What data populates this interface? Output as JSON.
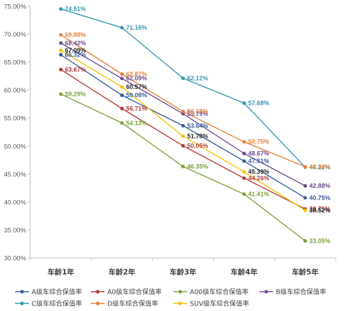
{
  "chart_data": {
    "type": "line",
    "categories": [
      "车龄1年",
      "车龄2年",
      "车龄3年",
      "车龄4年",
      "车龄5年"
    ],
    "ylim": [
      30,
      75
    ],
    "yticks": [
      "30.00%",
      "35.00%",
      "40.00%",
      "45.00%",
      "50.00%",
      "55.00%",
      "60.00%",
      "65.00%",
      "70.00%",
      "75.00%"
    ],
    "grid": false,
    "legend_position": "bottom",
    "series": [
      {
        "name": "A级车综合保值率",
        "color": "#3a5d9c",
        "values": [
          66.32,
          59.08,
          53.64,
          47.31,
          40.75
        ],
        "labels": [
          "66.32%",
          "59.08%",
          "53.64%",
          "47.31%",
          "40.75%"
        ]
      },
      {
        "name": "A0级车综合保值率",
        "color": "#b03a3a",
        "values": [
          63.67,
          56.71,
          50.05,
          44.26,
          38.75
        ],
        "labels": [
          "63.67%",
          "56.71%",
          "50.05%",
          "44.26%",
          "38.75%"
        ]
      },
      {
        "name": "A00级车综合保值率",
        "color": "#7fa03a",
        "values": [
          59.29,
          54.13,
          46.35,
          41.41,
          33.05
        ],
        "labels": [
          "59.29%",
          "54.13%",
          "46.35%",
          "41.41%",
          "33.05%"
        ]
      },
      {
        "name": "B级车综合保值率",
        "color": "#6a4c93",
        "values": [
          68.42,
          62.09,
          55.79,
          48.67,
          42.88
        ],
        "labels": [
          "68.42%",
          "62.09%",
          "55.79%",
          "48.67%",
          "42.88%"
        ]
      },
      {
        "name": "C级车综合保值率",
        "color": "#3597b0",
        "values": [
          74.51,
          71.16,
          62.12,
          57.68,
          46.22
        ],
        "labels": [
          "74.51%",
          "71.16%",
          "62.12%",
          "57.68%",
          "46.22%"
        ]
      },
      {
        "name": "D级车综合保值率",
        "color": "#e8823a",
        "values": [
          69.88,
          62.87,
          56.19,
          50.75,
          46.3
        ],
        "labels": [
          "69.88%",
          "62.87%",
          "56.19%",
          "50.75%",
          "46.30%"
        ]
      },
      {
        "name": "SUV级车综合保值率",
        "color": "#f5c200",
        "values": [
          67.09,
          60.57,
          51.78,
          45.39,
          38.52
        ],
        "labels": [
          "67.09%",
          "60.57%",
          "51.78%",
          "45.39%",
          "38.52%"
        ]
      }
    ]
  }
}
